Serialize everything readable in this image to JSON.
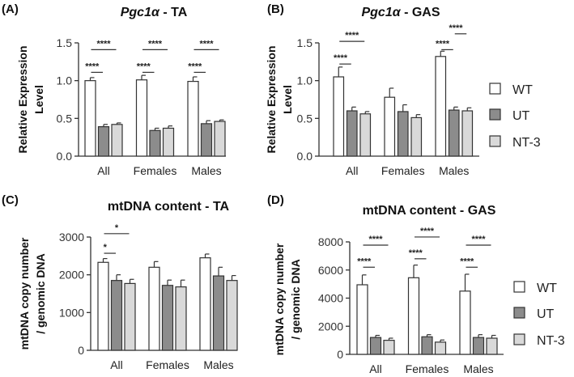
{
  "colors": {
    "WT": "#ffffff",
    "UT": "#8c8c8c",
    "NT-3": "#d9d9d9",
    "stroke": "#333333"
  },
  "legend": [
    "WT",
    "UT",
    "NT-3"
  ],
  "chart_data": [
    {
      "panel": "(A)",
      "type": "bar",
      "title_italic": "Pgc1α",
      "title_rest": " - TA",
      "ylabel": [
        "Relative Expression",
        "Level"
      ],
      "categories": [
        "All",
        "Females",
        "Males"
      ],
      "ylim": [
        0,
        1.5
      ],
      "yticks": [
        "0.0",
        "0.5",
        "1.0",
        "1.5"
      ],
      "ytick_values": [
        0,
        0.5,
        1.0,
        1.5
      ],
      "series": [
        {
          "name": "WT",
          "values": [
            1.0,
            1.01,
            0.99
          ],
          "errors": [
            0.04,
            0.06,
            0.06
          ]
        },
        {
          "name": "UT",
          "values": [
            0.39,
            0.34,
            0.43
          ],
          "errors": [
            0.03,
            0.03,
            0.04
          ]
        },
        {
          "name": "NT-3",
          "values": [
            0.42,
            0.37,
            0.46
          ],
          "errors": [
            0.02,
            0.03,
            0.02
          ]
        }
      ],
      "significance": [
        {
          "group": 0,
          "from": 0,
          "to": 1,
          "y": 1.11,
          "label": "****"
        },
        {
          "group": 0,
          "from": 0,
          "to": 2,
          "y": 1.41,
          "label": "****"
        },
        {
          "group": 1,
          "from": 0,
          "to": 1,
          "y": 1.11,
          "label": "****"
        },
        {
          "group": 1,
          "from": 0,
          "to": 2,
          "y": 1.41,
          "label": "****"
        },
        {
          "group": 2,
          "from": 0,
          "to": 1,
          "y": 1.11,
          "label": "****"
        },
        {
          "group": 2,
          "from": 0,
          "to": 2,
          "y": 1.41,
          "label": "****"
        }
      ]
    },
    {
      "panel": "(B)",
      "type": "bar",
      "title_italic": "Pgc1α",
      "title_rest": " - GAS",
      "ylabel": [
        "Relative Expression",
        "Level"
      ],
      "categories": [
        "All",
        "Females",
        "Males"
      ],
      "ylim": [
        0,
        1.5
      ],
      "yticks": [
        "0.0",
        "0.5",
        "1.0",
        "1.5"
      ],
      "ytick_values": [
        0,
        0.5,
        1.0,
        1.5
      ],
      "series": [
        {
          "name": "WT",
          "values": [
            1.05,
            0.78,
            1.32
          ],
          "errors": [
            0.13,
            0.12,
            0.07
          ]
        },
        {
          "name": "UT",
          "values": [
            0.6,
            0.59,
            0.61
          ],
          "errors": [
            0.05,
            0.09,
            0.04
          ]
        },
        {
          "name": "NT-3",
          "values": [
            0.56,
            0.51,
            0.6
          ],
          "errors": [
            0.03,
            0.04,
            0.04
          ]
        }
      ],
      "significance": [
        {
          "group": 0,
          "from": 0,
          "to": 1,
          "y": 1.22,
          "label": "****"
        },
        {
          "group": 0,
          "from": 0,
          "to": 2,
          "y": 1.52,
          "label": "****"
        },
        {
          "group": 2,
          "from": 0,
          "to": 1,
          "y": 1.41,
          "label": "****"
        },
        {
          "group": 2,
          "from": 1,
          "to": 2,
          "y": 1.62,
          "label": "****"
        }
      ]
    },
    {
      "panel": "(C)",
      "type": "bar",
      "title_italic": "",
      "title_rest": "mtDNA content - TA",
      "ylabel": [
        "mtDNA copy number",
        "/ genomic DNA"
      ],
      "categories": [
        "All",
        "Females",
        "Males"
      ],
      "ylim": [
        0,
        3000
      ],
      "yticks": [
        "0",
        "1000",
        "2000",
        "3000"
      ],
      "ytick_values": [
        0,
        1000,
        2000,
        3000
      ],
      "series": [
        {
          "name": "WT",
          "values": [
            2330,
            2200,
            2450
          ],
          "errors": [
            100,
            150,
            100
          ]
        },
        {
          "name": "UT",
          "values": [
            1850,
            1720,
            1970
          ],
          "errors": [
            150,
            140,
            230
          ]
        },
        {
          "name": "NT-3",
          "values": [
            1770,
            1680,
            1850
          ],
          "errors": [
            110,
            180,
            130
          ]
        }
      ],
      "significance": [
        {
          "group": 0,
          "from": 0,
          "to": 1,
          "y": 2570,
          "label": "*"
        },
        {
          "group": 0,
          "from": 0,
          "to": 2,
          "y": 3090,
          "label": "*"
        }
      ]
    },
    {
      "panel": "(D)",
      "type": "bar",
      "title_italic": "",
      "title_rest": "mtDNA content - GAS",
      "ylabel": [
        "mtDNA copy number",
        "/ genomic DNA"
      ],
      "categories": [
        "All",
        "Females",
        "Males"
      ],
      "ylim": [
        0,
        8000
      ],
      "yticks": [
        "0",
        "2000",
        "4000",
        "6000",
        "8000"
      ],
      "ytick_values": [
        0,
        2000,
        4000,
        6000,
        8000
      ],
      "series": [
        {
          "name": "WT",
          "values": [
            4950,
            5450,
            4500
          ],
          "errors": [
            700,
            900,
            1200
          ]
        },
        {
          "name": "UT",
          "values": [
            1200,
            1250,
            1200
          ],
          "errors": [
            150,
            150,
            200
          ]
        },
        {
          "name": "NT-3",
          "values": [
            1000,
            870,
            1150
          ],
          "errors": [
            150,
            150,
            200
          ]
        }
      ],
      "significance": [
        {
          "group": 0,
          "from": 0,
          "to": 1,
          "y": 6200,
          "label": "****"
        },
        {
          "group": 0,
          "from": 0,
          "to": 2,
          "y": 7770,
          "label": "****"
        },
        {
          "group": 1,
          "from": 0,
          "to": 1,
          "y": 6800,
          "label": "****"
        },
        {
          "group": 1,
          "from": 0,
          "to": 2,
          "y": 8350,
          "label": "****"
        },
        {
          "group": 2,
          "from": 0,
          "to": 1,
          "y": 6200,
          "label": "****"
        },
        {
          "group": 2,
          "from": 0,
          "to": 2,
          "y": 7770,
          "label": "****"
        }
      ]
    }
  ]
}
